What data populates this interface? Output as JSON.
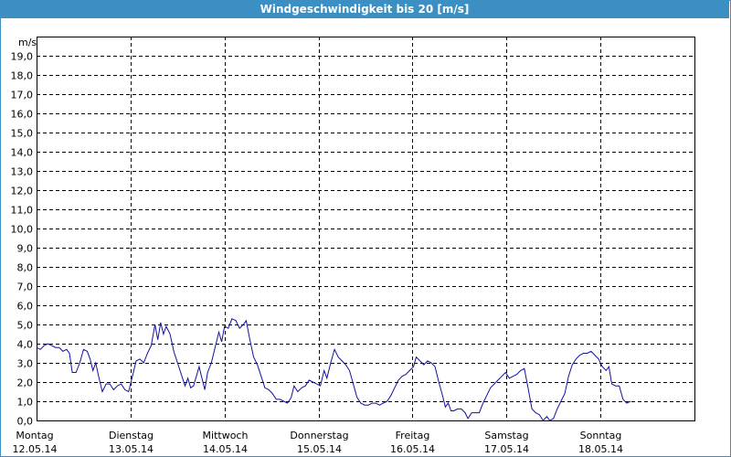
{
  "title": "Windgeschwindigkeit bis 20 [m/s]",
  "colors": {
    "title_bar": "#3c8fc2",
    "line": "#1010a0",
    "grid": "#000000"
  },
  "chart_data": {
    "type": "line",
    "title": "Windgeschwindigkeit bis 20 [m/s]",
    "ylabel": "m/s",
    "ylim": [
      0,
      20
    ],
    "xlim": [
      0,
      7
    ],
    "grid": true,
    "y_ticks": [
      "0,0",
      "1,0",
      "2,0",
      "3,0",
      "4,0",
      "5,0",
      "6,0",
      "7,0",
      "8,0",
      "9,0",
      "10,0",
      "11,0",
      "12,0",
      "13,0",
      "14,0",
      "15,0",
      "16,0",
      "17,0",
      "18,0",
      "19,0"
    ],
    "x_ticks": [
      {
        "day": "Montag",
        "date": "12.05.14"
      },
      {
        "day": "Dienstag",
        "date": "13.05.14"
      },
      {
        "day": "Mittwoch",
        "date": "14.05.14"
      },
      {
        "day": "Donnerstag",
        "date": "15.05.14"
      },
      {
        "day": "Freitag",
        "date": "16.05.14"
      },
      {
        "day": "Samstag",
        "date": "17.05.14"
      },
      {
        "day": "Sonntag",
        "date": "18.05.14"
      }
    ],
    "series": [
      {
        "points": [
          [
            0.0,
            3.8
          ],
          [
            0.04,
            3.7
          ],
          [
            0.08,
            3.9
          ],
          [
            0.12,
            4.0
          ],
          [
            0.16,
            3.9
          ],
          [
            0.2,
            3.8
          ],
          [
            0.24,
            3.8
          ],
          [
            0.28,
            3.6
          ],
          [
            0.32,
            3.7
          ],
          [
            0.35,
            3.5
          ],
          [
            0.38,
            2.5
          ],
          [
            0.42,
            2.5
          ],
          [
            0.46,
            3.0
          ],
          [
            0.5,
            3.7
          ],
          [
            0.54,
            3.6
          ],
          [
            0.57,
            3.2
          ],
          [
            0.6,
            2.6
          ],
          [
            0.63,
            3.0
          ],
          [
            0.66,
            2.3
          ],
          [
            0.7,
            1.5
          ],
          [
            0.74,
            1.9
          ],
          [
            0.78,
            1.9
          ],
          [
            0.82,
            1.6
          ],
          [
            0.86,
            1.8
          ],
          [
            0.9,
            1.9
          ],
          [
            0.94,
            1.6
          ],
          [
            0.98,
            1.5
          ],
          [
            1.02,
            2.3
          ],
          [
            1.06,
            3.1
          ],
          [
            1.1,
            3.2
          ],
          [
            1.14,
            3.0
          ],
          [
            1.18,
            3.5
          ],
          [
            1.22,
            3.9
          ],
          [
            1.26,
            5.0
          ],
          [
            1.29,
            4.2
          ],
          [
            1.32,
            5.1
          ],
          [
            1.35,
            4.5
          ],
          [
            1.38,
            4.9
          ],
          [
            1.42,
            4.5
          ],
          [
            1.46,
            3.6
          ],
          [
            1.5,
            3.0
          ],
          [
            1.54,
            2.4
          ],
          [
            1.58,
            1.8
          ],
          [
            1.61,
            2.2
          ],
          [
            1.64,
            1.7
          ],
          [
            1.67,
            1.8
          ],
          [
            1.7,
            2.3
          ],
          [
            1.73,
            2.8
          ],
          [
            1.76,
            2.2
          ],
          [
            1.79,
            1.6
          ],
          [
            1.82,
            2.5
          ],
          [
            1.86,
            3.0
          ],
          [
            1.9,
            3.8
          ],
          [
            1.94,
            4.6
          ],
          [
            1.97,
            4.1
          ],
          [
            2.0,
            4.9
          ],
          [
            2.04,
            4.8
          ],
          [
            2.08,
            5.3
          ],
          [
            2.12,
            5.2
          ],
          [
            2.16,
            4.8
          ],
          [
            2.2,
            5.0
          ],
          [
            2.23,
            5.2
          ],
          [
            2.27,
            4.2
          ],
          [
            2.31,
            3.3
          ],
          [
            2.35,
            2.9
          ],
          [
            2.39,
            2.3
          ],
          [
            2.43,
            1.7
          ],
          [
            2.47,
            1.6
          ],
          [
            2.51,
            1.4
          ],
          [
            2.55,
            1.1
          ],
          [
            2.59,
            1.1
          ],
          [
            2.63,
            1.0
          ],
          [
            2.67,
            0.9
          ],
          [
            2.71,
            1.2
          ],
          [
            2.74,
            1.8
          ],
          [
            2.78,
            1.5
          ],
          [
            2.82,
            1.7
          ],
          [
            2.86,
            1.8
          ],
          [
            2.9,
            2.1
          ],
          [
            2.94,
            2.0
          ],
          [
            2.98,
            1.9
          ],
          [
            3.02,
            1.8
          ],
          [
            3.06,
            2.6
          ],
          [
            3.09,
            2.2
          ],
          [
            3.13,
            3.0
          ],
          [
            3.17,
            3.7
          ],
          [
            3.21,
            3.3
          ],
          [
            3.25,
            3.1
          ],
          [
            3.29,
            2.9
          ],
          [
            3.33,
            2.6
          ],
          [
            3.37,
            1.9
          ],
          [
            3.41,
            1.2
          ],
          [
            3.45,
            0.9
          ],
          [
            3.49,
            0.8
          ],
          [
            3.53,
            0.8
          ],
          [
            3.57,
            0.9
          ],
          [
            3.61,
            0.9
          ],
          [
            3.65,
            0.8
          ],
          [
            3.69,
            0.9
          ],
          [
            3.73,
            1.0
          ],
          [
            3.77,
            1.3
          ],
          [
            3.81,
            1.7
          ],
          [
            3.85,
            2.1
          ],
          [
            3.89,
            2.3
          ],
          [
            3.93,
            2.4
          ],
          [
            3.97,
            2.6
          ],
          [
            4.01,
            2.8
          ],
          [
            4.04,
            3.3
          ],
          [
            4.08,
            3.1
          ],
          [
            4.12,
            2.9
          ],
          [
            4.16,
            3.1
          ],
          [
            4.2,
            3.0
          ],
          [
            4.24,
            2.8
          ],
          [
            4.28,
            2.0
          ],
          [
            4.32,
            1.3
          ],
          [
            4.35,
            0.7
          ],
          [
            4.38,
            0.9
          ],
          [
            4.41,
            0.5
          ],
          [
            4.44,
            0.5
          ],
          [
            4.48,
            0.6
          ],
          [
            4.52,
            0.6
          ],
          [
            4.56,
            0.4
          ],
          [
            4.59,
            0.1
          ],
          [
            4.63,
            0.4
          ],
          [
            4.67,
            0.4
          ],
          [
            4.71,
            0.4
          ],
          [
            4.75,
            0.9
          ],
          [
            4.79,
            1.3
          ],
          [
            4.83,
            1.7
          ],
          [
            4.87,
            1.9
          ],
          [
            4.91,
            2.1
          ],
          [
            4.95,
            2.3
          ],
          [
            4.99,
            2.5
          ],
          [
            5.03,
            2.2
          ],
          [
            5.07,
            2.3
          ],
          [
            5.11,
            2.4
          ],
          [
            5.15,
            2.6
          ],
          [
            5.19,
            2.7
          ],
          [
            5.23,
            1.7
          ],
          [
            5.27,
            0.6
          ],
          [
            5.31,
            0.4
          ],
          [
            5.35,
            0.3
          ],
          [
            5.39,
            0.0
          ],
          [
            5.43,
            0.2
          ],
          [
            5.46,
            0.0
          ],
          [
            5.5,
            0.1
          ],
          [
            5.54,
            0.6
          ],
          [
            5.58,
            1.0
          ],
          [
            5.62,
            1.4
          ],
          [
            5.66,
            2.3
          ],
          [
            5.7,
            2.9
          ],
          [
            5.74,
            3.2
          ],
          [
            5.78,
            3.4
          ],
          [
            5.82,
            3.5
          ],
          [
            5.86,
            3.5
          ],
          [
            5.9,
            3.6
          ],
          [
            5.94,
            3.4
          ],
          [
            5.98,
            3.2
          ],
          [
            6.02,
            2.8
          ],
          [
            6.06,
            2.6
          ],
          [
            6.09,
            2.8
          ],
          [
            6.12,
            1.9
          ],
          [
            6.16,
            1.8
          ],
          [
            6.2,
            1.8
          ],
          [
            6.24,
            1.1
          ],
          [
            6.28,
            0.9
          ],
          [
            6.32,
            1.0
          ]
        ]
      }
    ]
  }
}
